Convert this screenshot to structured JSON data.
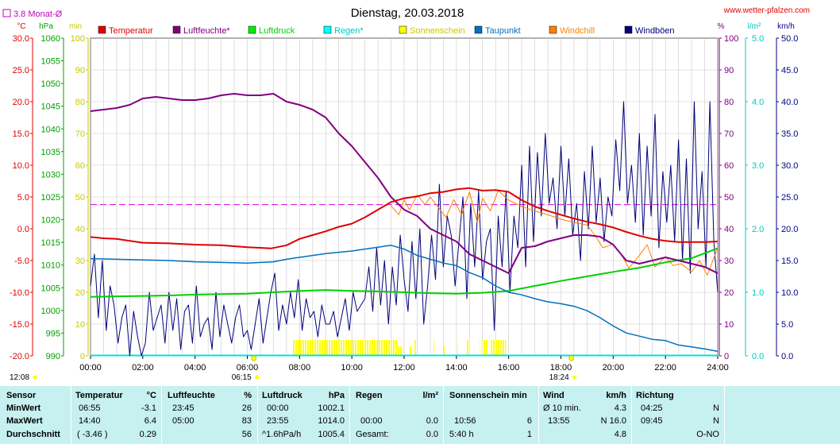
{
  "title": "Dienstag, 20.03.2018",
  "website": "www.wetter-pfalzen.com",
  "monthly_avg_label": "3.8 Monat-Ø",
  "axes_units": {
    "left": [
      "°C",
      "hPa",
      "min"
    ],
    "right": [
      "%",
      "l/m²",
      "km/h"
    ]
  },
  "legend": [
    {
      "label": "Temperatur",
      "color": "#e00000",
      "box": "#e00000"
    },
    {
      "label": "Luftfeuchte*",
      "color": "#800080",
      "box": "#800080"
    },
    {
      "label": "Luftdruck",
      "color": "#00d000",
      "box": "#00ee00"
    },
    {
      "label": "Regen*",
      "color": "#00c8c8",
      "box": "#00ffff"
    },
    {
      "label": "Sonnenschein",
      "color": "#c8c800",
      "box": "#ffff00"
    },
    {
      "label": "Taupunkt",
      "color": "#0070c0",
      "box": "#0070c0"
    },
    {
      "label": "Windchill",
      "color": "#ff8000",
      "box": "#ff8000"
    },
    {
      "label": "Windböen",
      "color": "#000080",
      "box": "#000080"
    }
  ],
  "sun_events": {
    "rise": "06:15",
    "set": "18:24",
    "daylight_start": "12:08"
  },
  "chart_data": {
    "type": "line",
    "x_range": [
      "00:00",
      "24:00"
    ],
    "x_ticks": [
      "00:00",
      "02:00",
      "04:00",
      "06:00",
      "08:00",
      "10:00",
      "12:00",
      "14:00",
      "16:00",
      "18:00",
      "20:00",
      "22:00",
      "24:00"
    ],
    "axes": {
      "temp_c": {
        "ticks": [
          "30.0",
          "25.0",
          "20.0",
          "15.0",
          "10.0",
          "5.0",
          "0.0",
          "-5.0",
          "-10.0",
          "-15.0",
          "-20.0"
        ],
        "min": -20,
        "max": 30
      },
      "pressure_hpa": {
        "ticks": [
          "1060",
          "1055",
          "1050",
          "1045",
          "1040",
          "1035",
          "1030",
          "1025",
          "1020",
          "1015",
          "1010",
          "1005",
          "1000",
          "995",
          "990"
        ],
        "min": 990,
        "max": 1060
      },
      "sun_min": {
        "ticks": [
          "100",
          "90",
          "80",
          "70",
          "60",
          "50",
          "40",
          "30",
          "20",
          "10",
          "0"
        ],
        "min": 0,
        "max": 100
      },
      "humidity_pct": {
        "ticks": [
          "100",
          "90",
          "80",
          "70",
          "60",
          "50",
          "40",
          "30",
          "20",
          "10",
          "0"
        ],
        "min": 0,
        "max": 100
      },
      "rain_lm2": {
        "ticks": [
          "5.0",
          "4.0",
          "3.0",
          "2.0",
          "1.0",
          "0.0"
        ],
        "min": 0,
        "max": 5
      },
      "wind_kmh": {
        "ticks": [
          "50.0",
          "45.0",
          "40.0",
          "35.0",
          "30.0",
          "25.0",
          "20.0",
          "15.0",
          "10.0",
          "5.0",
          "0.0"
        ],
        "min": 0,
        "max": 50
      }
    },
    "monthly_avg_temp": 3.8,
    "series": [
      {
        "name": "Temperatur",
        "axis": "temp_c",
        "color": "#e00000",
        "x": [
          0,
          0.5,
          1,
          1.5,
          2,
          3,
          4,
          5,
          6,
          6.5,
          6.9,
          7.5,
          8,
          8.5,
          9,
          9.5,
          10,
          10.5,
          11,
          11.5,
          12,
          12.5,
          13,
          13.5,
          14,
          14.5,
          15,
          15.5,
          16,
          16.5,
          17,
          17.5,
          18,
          18.5,
          19,
          19.5,
          20,
          20.5,
          21,
          21.5,
          22,
          22.5,
          23,
          23.5,
          24
        ],
        "y": [
          -1.3,
          -1.5,
          -1.6,
          -1.9,
          -2.2,
          -2.3,
          -2.5,
          -2.6,
          -2.9,
          -3.0,
          -3.1,
          -2.6,
          -1.6,
          -1.0,
          -0.4,
          0.3,
          0.8,
          1.8,
          3.0,
          4.2,
          4.8,
          5.1,
          5.6,
          5.8,
          6.2,
          6.4,
          6.0,
          6.1,
          5.8,
          4.5,
          3.5,
          2.8,
          2.2,
          1.6,
          1.1,
          0.7,
          0.2,
          -0.5,
          -1.1,
          -1.6,
          -1.9,
          -2.1,
          -2.1,
          -2.1,
          -2.0
        ]
      },
      {
        "name": "Luftfeuchte*",
        "axis": "humidity_pct",
        "color": "#800080",
        "x": [
          0,
          0.5,
          1,
          1.5,
          2,
          2.5,
          3,
          3.5,
          4,
          4.5,
          5,
          5.5,
          6,
          6.5,
          7,
          7.5,
          8,
          8.5,
          9,
          9.5,
          10,
          10.5,
          11,
          11.5,
          12,
          12.5,
          13,
          13.5,
          14,
          14.5,
          15,
          15.5,
          16,
          16.5,
          17,
          17.5,
          18,
          18.5,
          19,
          19.5,
          20,
          20.5,
          21,
          21.5,
          22,
          22.5,
          23,
          23.5,
          24
        ],
        "y": [
          77,
          77.5,
          78,
          79,
          81,
          81.5,
          81,
          80.5,
          80.5,
          81,
          82,
          82.5,
          82,
          82,
          82.5,
          80,
          79,
          77.5,
          75,
          70,
          66,
          61,
          56,
          50,
          46,
          44,
          40,
          38,
          36,
          32,
          30,
          28,
          26,
          34,
          34.5,
          36,
          37,
          38,
          38,
          37.5,
          35,
          30,
          29,
          30,
          31,
          30,
          29,
          28,
          26
        ]
      },
      {
        "name": "Luftdruck",
        "axis": "pressure_hpa",
        "color": "#00d000",
        "x": [
          0,
          1,
          2,
          3,
          4,
          5,
          6,
          7,
          8,
          9,
          10,
          11,
          12,
          13,
          14,
          15,
          16,
          17,
          18,
          19,
          20,
          21,
          22,
          23,
          24
        ],
        "y": [
          1003.0,
          1003.1,
          1003.2,
          1003.3,
          1003.5,
          1003.6,
          1003.7,
          1004.0,
          1004.3,
          1004.5,
          1004.3,
          1004.2,
          1004.0,
          1003.8,
          1003.7,
          1003.9,
          1004.3,
          1005.4,
          1006.5,
          1007.5,
          1008.5,
          1009.4,
          1010.6,
          1011.5,
          1013.7
        ]
      },
      {
        "name": "Taupunkt",
        "axis": "temp_c",
        "color": "#0070c0",
        "x": [
          0,
          1,
          2,
          3,
          4,
          5,
          6,
          7,
          7.5,
          8,
          8.5,
          9,
          9.5,
          10,
          10.5,
          11,
          11.5,
          12,
          12.5,
          13,
          13.5,
          14,
          14.5,
          15,
          15.5,
          16,
          16.5,
          17,
          17.5,
          18,
          18.5,
          19,
          19.5,
          20,
          20.5,
          21,
          21.5,
          22,
          22.5,
          23,
          23.5,
          24
        ],
        "y": [
          -4.7,
          -4.8,
          -4.9,
          -5.0,
          -5.2,
          -5.3,
          -5.4,
          -5.2,
          -4.8,
          -4.5,
          -4.2,
          -3.9,
          -3.7,
          -3.5,
          -3.2,
          -2.9,
          -2.6,
          -3.2,
          -4.2,
          -4.8,
          -5.4,
          -5.8,
          -6.9,
          -7.7,
          -9.0,
          -10.0,
          -10.4,
          -11.0,
          -11.5,
          -11.8,
          -12.2,
          -12.9,
          -14.0,
          -15.3,
          -16.4,
          -16.9,
          -17.4,
          -17.6,
          -18.3,
          -18.6,
          -18.9,
          -19.3
        ]
      },
      {
        "name": "Windchill",
        "axis": "temp_c",
        "color": "#ff8000",
        "x": [
          11.5,
          11.8,
          12,
          12.2,
          12.5,
          12.8,
          13,
          13.3,
          13.6,
          13.9,
          14.2,
          14.5,
          14.8,
          15,
          15.3,
          15.6,
          16,
          16.5,
          17,
          17.5,
          18,
          18.5,
          19,
          19.3,
          19.6,
          20,
          20.3,
          20.6,
          21,
          21.3,
          21.6,
          22,
          22.3,
          22.6,
          23,
          23.3,
          23.6,
          24
        ],
        "y": [
          3.6,
          2.2,
          4.6,
          3.0,
          5.3,
          3.8,
          5.0,
          3.4,
          1.8,
          4.6,
          2.2,
          5.8,
          1.0,
          4.8,
          2.8,
          6.0,
          4.5,
          3.5,
          2.8,
          2.2,
          1.5,
          1.0,
          0.6,
          -1.0,
          -3.0,
          -2.4,
          -4.0,
          -6.2,
          -4.2,
          -2.5,
          -6.0,
          -4.4,
          -5.8,
          -5.5,
          -6.8,
          -5.0,
          -7.3,
          -3.0
        ]
      },
      {
        "name": "Windböen",
        "axis": "wind_kmh",
        "color": "#00007a",
        "x": [
          0,
          0.15,
          0.3,
          0.45,
          0.6,
          0.75,
          0.9,
          1.05,
          1.2,
          1.35,
          1.5,
          1.65,
          1.8,
          1.95,
          2.1,
          2.25,
          2.4,
          2.55,
          2.7,
          2.85,
          3.0,
          3.15,
          3.3,
          3.45,
          3.6,
          3.75,
          3.9,
          4.05,
          4.2,
          4.35,
          4.5,
          4.65,
          4.8,
          4.95,
          5.1,
          5.25,
          5.4,
          5.55,
          5.7,
          5.85,
          6.0,
          6.15,
          6.3,
          6.45,
          6.6,
          6.75,
          6.9,
          7.05,
          7.2,
          7.35,
          7.5,
          7.65,
          7.8,
          7.95,
          8.1,
          8.25,
          8.4,
          8.55,
          8.7,
          8.85,
          9.0,
          9.15,
          9.3,
          9.45,
          9.6,
          9.75,
          9.9,
          10.05,
          10.2,
          10.35,
          10.5,
          10.65,
          10.8,
          10.95,
          11.1,
          11.25,
          11.4,
          11.55,
          11.7,
          11.85,
          12.0,
          12.15,
          12.3,
          12.45,
          12.6,
          12.75,
          12.9,
          13.05,
          13.2,
          13.35,
          13.5,
          13.65,
          13.8,
          13.95,
          14.1,
          14.25,
          14.4,
          14.55,
          14.7,
          14.85,
          15.0,
          15.15,
          15.3,
          15.45,
          15.6,
          15.75,
          15.9,
          16.05,
          16.2,
          16.35,
          16.5,
          16.65,
          16.8,
          16.95,
          17.1,
          17.25,
          17.4,
          17.55,
          17.7,
          17.85,
          18.0,
          18.15,
          18.3,
          18.45,
          18.6,
          18.75,
          18.9,
          19.05,
          19.2,
          19.35,
          19.5,
          19.65,
          19.8,
          19.95,
          20.1,
          20.25,
          20.4,
          20.55,
          20.7,
          20.85,
          21.0,
          21.15,
          21.3,
          21.45,
          21.6,
          21.75,
          21.9,
          22.05,
          22.2,
          22.35,
          22.5,
          22.65,
          22.8,
          22.95,
          23.1,
          23.25,
          23.4,
          23.55,
          23.7,
          23.85,
          24.0
        ],
        "y": [
          11,
          16,
          6,
          15,
          4,
          11,
          8,
          2,
          6,
          8,
          0,
          7,
          3,
          0,
          2,
          10,
          4,
          6,
          8,
          2,
          10,
          4,
          9,
          1,
          7,
          8,
          2,
          11,
          3,
          5,
          6,
          1,
          10,
          3,
          8,
          5,
          2,
          6,
          8,
          3,
          4,
          1,
          5,
          9,
          2,
          6,
          10,
          13,
          4,
          8,
          5,
          10,
          6,
          12,
          4,
          9,
          6,
          7,
          3,
          8,
          5,
          5,
          7,
          3,
          6,
          9,
          4,
          10,
          7,
          8,
          9,
          14,
          7,
          17,
          8,
          15,
          5,
          14,
          8,
          19,
          12,
          7,
          18,
          9,
          20,
          5,
          11,
          19,
          12,
          27,
          14,
          22,
          19,
          11,
          18,
          25,
          9,
          24,
          14,
          26,
          12,
          18,
          20,
          4,
          22,
          14,
          26,
          10,
          22,
          17,
          30,
          14,
          33,
          18,
          32,
          22,
          35,
          24,
          28,
          20,
          33,
          22,
          31,
          19,
          24,
          15,
          29,
          20,
          33,
          21,
          28,
          18,
          25,
          22,
          34,
          26,
          40,
          24,
          30,
          21,
          35,
          19,
          33,
          22,
          38,
          17,
          29,
          21,
          30,
          18,
          34,
          15,
          31,
          13,
          40,
          20,
          29,
          14,
          40,
          18,
          10
        ]
      }
    ],
    "sunshine_bars": [
      {
        "start": 7.75,
        "end": 11.75,
        "value": 5
      },
      {
        "start": 11.75,
        "end": 11.95,
        "value": 3
      },
      {
        "start": 12.2,
        "end": 12.28,
        "value": 3
      },
      {
        "start": 12.4,
        "end": 12.45,
        "value": 5
      },
      {
        "start": 13.1,
        "end": 13.15,
        "value": 5
      },
      {
        "start": 13.5,
        "end": 13.58,
        "value": 3
      },
      {
        "start": 14.0,
        "end": 14.05,
        "value": 5
      },
      {
        "start": 14.4,
        "end": 14.5,
        "value": 5
      },
      {
        "start": 14.9,
        "end": 14.95,
        "value": 5
      },
      {
        "start": 15.0,
        "end": 15.2,
        "value": 5
      },
      {
        "start": 15.3,
        "end": 15.9,
        "value": 5
      }
    ],
    "rain_total": 0.0
  },
  "stats": {
    "row_labels": [
      "Sensor",
      "MinWert",
      "MaxWert",
      "Durchschnitt"
    ],
    "temperature": {
      "header": "Temperatur",
      "unit": "°C",
      "min_time": "06:55",
      "min": "-3.1",
      "max_time": "14:40",
      "max": "6.4",
      "avg_note": "( -3.46 )",
      "avg": "0.29"
    },
    "humidity": {
      "header": "Luftfeuchte",
      "unit": "%",
      "min_time": "23:45",
      "min": "26",
      "max_time": "05:00",
      "max": "83",
      "avg": "56"
    },
    "pressure": {
      "header": "Luftdruck",
      "unit": "hPa",
      "min_time": "00:00",
      "min": "1002.1",
      "max_time": "23:55",
      "max": "1014.0",
      "avg_note": "^1.6hPa/h",
      "avg": "1005.4"
    },
    "rain": {
      "header": "Regen",
      "unit": "l/m²",
      "min": "",
      "max_time": "00:00",
      "max": "0.0",
      "avg_note": "Gesamt:",
      "avg": "0.0"
    },
    "sunshine": {
      "header": "Sonnenschein min",
      "max_time": "10:56",
      "max": "6",
      "avg_note": "5:40 h",
      "avg": "1"
    },
    "wind": {
      "header": "Wind",
      "unit": "km/h",
      "min_time": "Ø 10 min.",
      "min": "4.3",
      "max_time": "13:55",
      "max": "N 16.0",
      "avg": "4.8"
    },
    "direction": {
      "header": "Richtung",
      "min_time": "04:25",
      "min": "N",
      "max_time": "09:45",
      "max": "N",
      "avg": "O-NO"
    }
  }
}
